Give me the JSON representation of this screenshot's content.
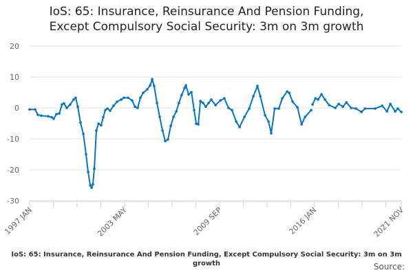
{
  "chart_data": {
    "type": "line",
    "title": "IoS: 65: Insurance, Reinsurance And Pension Funding, Except Compulsory Social Security: 3m on 3m growth",
    "title_lines": [
      "IoS: 65: Insurance, Reinsurance And Pension Funding,",
      "Except Compulsory Social Security: 3m on 3m growth"
    ],
    "xlabel": "",
    "ylabel": "",
    "ylim": [
      -30,
      20
    ],
    "yticks": [
      20,
      10,
      0,
      -10,
      -20,
      -30
    ],
    "ytick_labels": [
      "20",
      "10",
      "0",
      "-10",
      "-20",
      "-30"
    ],
    "xlim": [
      1997.0,
      2021.83
    ],
    "xticks": [
      1997.0,
      2003.33,
      2009.67,
      2016.0,
      2021.83
    ],
    "xtick_labels": [
      "1997 JAN",
      "2003 MAY",
      "2009 SEP",
      "2016 JAN",
      "2021 NOV"
    ],
    "grid": true,
    "series": [
      {
        "name": "3m on 3m growth",
        "color": "#0075c4",
        "points": [
          [
            1997.0,
            -0.5
          ],
          [
            1997.37,
            -0.5
          ],
          [
            1997.55,
            -2.2
          ],
          [
            1997.78,
            -2.5
          ],
          [
            1998.24,
            -2.7
          ],
          [
            1998.47,
            -3.0
          ],
          [
            1998.61,
            -3.5
          ],
          [
            1998.79,
            -2.0
          ],
          [
            1998.98,
            -1.8
          ],
          [
            1999.16,
            1.1
          ],
          [
            1999.3,
            1.5
          ],
          [
            1999.48,
            0.0
          ],
          [
            1999.71,
            1.1
          ],
          [
            1999.94,
            2.7
          ],
          [
            2000.08,
            3.3
          ],
          [
            2000.22,
            0.4
          ],
          [
            2000.4,
            -4.7
          ],
          [
            2000.59,
            -8.4
          ],
          [
            2000.77,
            -15.0
          ],
          [
            2000.91,
            -20.7
          ],
          [
            2001.05,
            -25.0
          ],
          [
            2001.14,
            -25.8
          ],
          [
            2001.23,
            -24.7
          ],
          [
            2001.32,
            -19.6
          ],
          [
            2001.46,
            -7.3
          ],
          [
            2001.6,
            -5.1
          ],
          [
            2001.78,
            -5.6
          ],
          [
            2001.92,
            -3.0
          ],
          [
            2002.06,
            -0.7
          ],
          [
            2002.2,
            -0.2
          ],
          [
            2002.38,
            -0.9
          ],
          [
            2002.61,
            0.7
          ],
          [
            2002.84,
            2.0
          ],
          [
            2003.12,
            2.7
          ],
          [
            2003.3,
            3.3
          ],
          [
            2003.58,
            3.3
          ],
          [
            2003.85,
            2.4
          ],
          [
            2004.04,
            0.4
          ],
          [
            2004.22,
            0.0
          ],
          [
            2004.4,
            3.3
          ],
          [
            2004.59,
            4.9
          ],
          [
            2004.86,
            6.0
          ],
          [
            2005.05,
            7.3
          ],
          [
            2005.19,
            9.3
          ],
          [
            2005.32,
            7.1
          ],
          [
            2005.51,
            1.6
          ],
          [
            2005.69,
            -2.9
          ],
          [
            2005.88,
            -7.3
          ],
          [
            2006.06,
            -10.7
          ],
          [
            2006.24,
            -10.2
          ],
          [
            2006.43,
            -5.8
          ],
          [
            2006.61,
            -2.9
          ],
          [
            2006.8,
            -1.1
          ],
          [
            2006.98,
            1.6
          ],
          [
            2007.16,
            4.2
          ],
          [
            2007.35,
            6.4
          ],
          [
            2007.44,
            7.3
          ],
          [
            2007.62,
            4.4
          ],
          [
            2007.81,
            5.1
          ],
          [
            2007.99,
            -0.7
          ],
          [
            2008.13,
            -5.1
          ],
          [
            2008.27,
            -5.3
          ],
          [
            2008.41,
            2.2
          ],
          [
            2008.59,
            1.6
          ],
          [
            2008.77,
            0.4
          ],
          [
            2008.96,
            1.6
          ],
          [
            2009.14,
            2.7
          ],
          [
            2009.42,
            0.9
          ],
          [
            2009.74,
            2.4
          ],
          [
            2010.01,
            3.1
          ],
          [
            2010.29,
            0.0
          ],
          [
            2010.52,
            -0.7
          ],
          [
            2010.8,
            -4.4
          ],
          [
            2011.03,
            -6.2
          ],
          [
            2011.35,
            -2.9
          ],
          [
            2011.67,
            -0.2
          ],
          [
            2011.95,
            3.8
          ],
          [
            2012.22,
            7.1
          ],
          [
            2012.41,
            3.8
          ],
          [
            2012.73,
            -2.4
          ],
          [
            2012.96,
            -4.4
          ],
          [
            2013.14,
            -8.2
          ],
          [
            2013.37,
            -0.2
          ],
          [
            2013.65,
            -0.2
          ],
          [
            2013.88,
            3.1
          ],
          [
            2014.2,
            5.3
          ],
          [
            2014.34,
            4.9
          ],
          [
            2014.57,
            2.0
          ],
          [
            2014.89,
            0.2
          ],
          [
            2015.17,
            -5.3
          ],
          [
            2015.4,
            -2.9
          ],
          [
            2015.81,
            -0.7
          ],
          [
            2015.85,
            null
          ],
          [
            2015.9,
            1.1
          ],
          [
            2016.09,
            3.1
          ],
          [
            2016.27,
            2.7
          ],
          [
            2016.5,
            4.4
          ],
          [
            2016.73,
            2.7
          ],
          [
            2017.01,
            0.9
          ],
          [
            2017.42,
            0.0
          ],
          [
            2017.65,
            1.3
          ],
          [
            2017.93,
            0.4
          ],
          [
            2018.16,
            1.8
          ],
          [
            2018.48,
            0.0
          ],
          [
            2018.8,
            -0.2
          ],
          [
            2019.17,
            -1.3
          ],
          [
            2019.4,
            -0.2
          ],
          [
            2020.09,
            -0.2
          ],
          [
            2020.55,
            0.7
          ],
          [
            2020.87,
            -1.1
          ],
          [
            2021.1,
            1.3
          ],
          [
            2021.42,
            -1.1
          ],
          [
            2021.6,
            -0.2
          ],
          [
            2021.83,
            -1.3
          ]
        ]
      }
    ]
  },
  "footer": {
    "caption": "IoS: 65: Insurance, Reinsurance And Pension Funding, Except Compulsory Social Security: 3m on 3m growth",
    "source": "Source: "
  }
}
